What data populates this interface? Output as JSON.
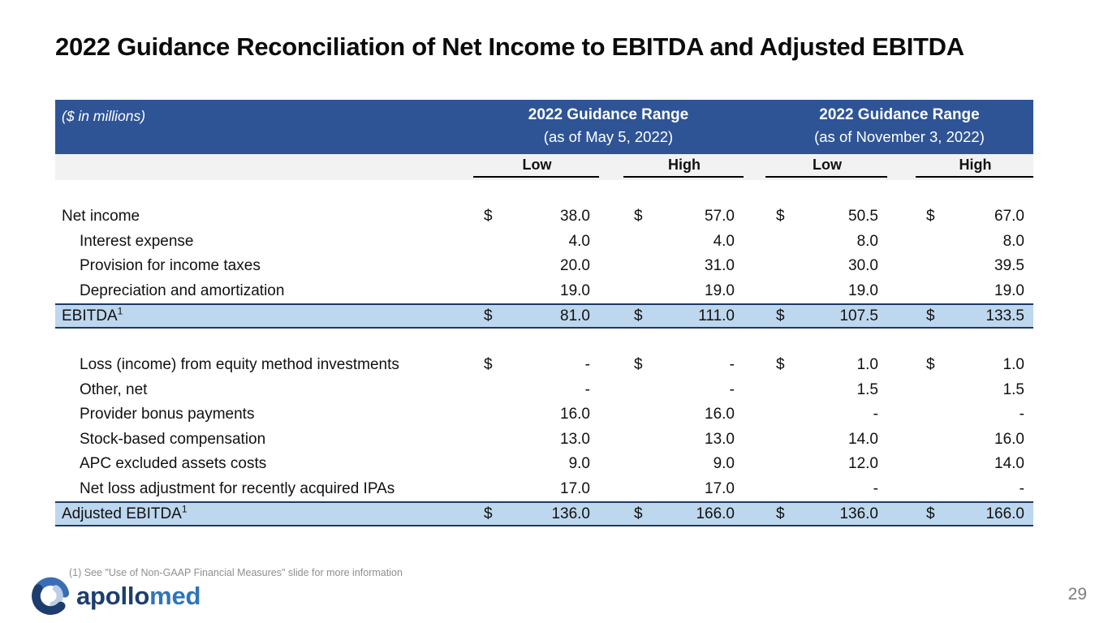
{
  "slide": {
    "title": "2022 Guidance Reconciliation of Net Income to EBITDA and Adjusted EBITDA",
    "page_number": "29",
    "footnote": "(1) See \"Use of Non-GAAP Financial Measures\" slide for more information",
    "logo": {
      "text_primary": "apollo",
      "text_secondary": "med"
    }
  },
  "table": {
    "corner_label": "($ in millions)",
    "column_groups": [
      {
        "title": "2022 Guidance Range",
        "subtitle": "(as of May 5, 2022)"
      },
      {
        "title": "2022 Guidance Range",
        "subtitle": "(as of November 3, 2022)"
      }
    ],
    "sub_headers": [
      "Low",
      "High",
      "Low",
      "High"
    ],
    "sections": [
      {
        "rows": [
          {
            "label": "Net income",
            "indent": false,
            "dollar": true,
            "values": [
              "38.0",
              "57.0",
              "50.5",
              "67.0"
            ]
          },
          {
            "label": "Interest expense",
            "indent": true,
            "dollar": false,
            "values": [
              "4.0",
              "4.0",
              "8.0",
              "8.0"
            ]
          },
          {
            "label": "Provision for income taxes",
            "indent": true,
            "dollar": false,
            "values": [
              "20.0",
              "31.0",
              "30.0",
              "39.5"
            ]
          },
          {
            "label": "Depreciation and amortization",
            "indent": true,
            "dollar": false,
            "values": [
              "19.0",
              "19.0",
              "19.0",
              "19.0"
            ]
          }
        ],
        "total": {
          "label": "EBITDA",
          "superscript": "1",
          "dollar": true,
          "values": [
            "81.0",
            "111.0",
            "107.5",
            "133.5"
          ]
        }
      },
      {
        "rows": [
          {
            "label": "Loss (income) from equity method investments",
            "indent": true,
            "dollar": true,
            "values": [
              "-",
              "-",
              "1.0",
              "1.0"
            ]
          },
          {
            "label": "Other, net",
            "indent": true,
            "dollar": false,
            "values": [
              "-",
              "-",
              "1.5",
              "1.5"
            ]
          },
          {
            "label": "Provider bonus payments",
            "indent": true,
            "dollar": false,
            "values": [
              "16.0",
              "16.0",
              "-",
              "-"
            ]
          },
          {
            "label": "Stock-based compensation",
            "indent": true,
            "dollar": false,
            "values": [
              "13.0",
              "13.0",
              "14.0",
              "16.0"
            ]
          },
          {
            "label": "APC excluded assets costs",
            "indent": true,
            "dollar": false,
            "values": [
              "9.0",
              "9.0",
              "12.0",
              "14.0"
            ]
          },
          {
            "label": "Net loss adjustment for recently acquired IPAs",
            "indent": true,
            "dollar": false,
            "values": [
              "17.0",
              "17.0",
              "-",
              "-"
            ]
          }
        ],
        "total": {
          "label": "Adjusted EBITDA",
          "superscript": "1",
          "dollar": true,
          "values": [
            "136.0",
            "166.0",
            "136.0",
            "166.0"
          ]
        }
      }
    ]
  },
  "colors": {
    "header_bar": "#2e5496",
    "highlight_row": "#bdd7ee",
    "row_border": "#1f3864",
    "subheader_bg": "#f2f2f2",
    "logo_navy": "#1c3e6e",
    "logo_blue": "#2f74b8"
  }
}
